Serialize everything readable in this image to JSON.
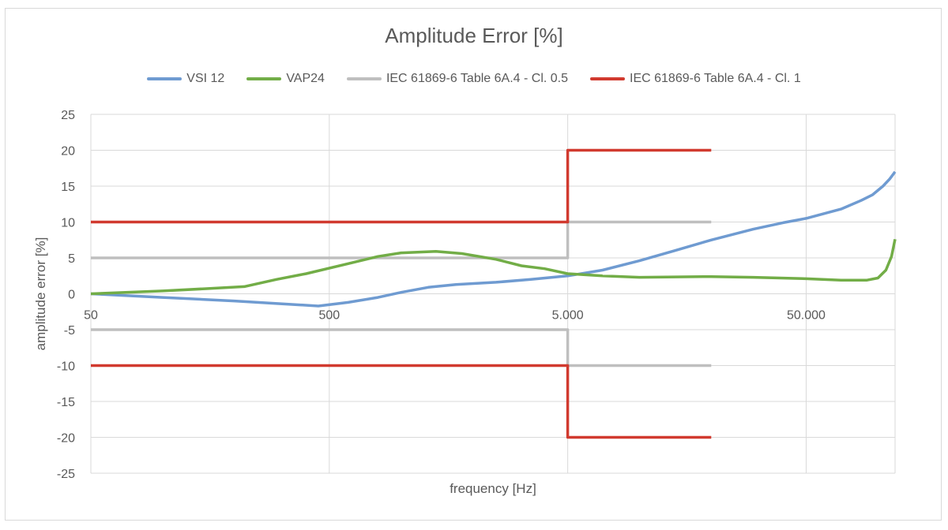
{
  "chart_data": {
    "type": "line",
    "title": "Amplitude Error [%]",
    "xlabel": "frequency [Hz]",
    "ylabel": "amplitude error [%]",
    "x_scale": "log",
    "xlim": [
      50,
      118000
    ],
    "ylim": [
      -25,
      25
    ],
    "x_ticks": [
      50,
      500,
      5000,
      50000
    ],
    "x_tick_labels": [
      "50",
      "500",
      "5.000",
      "50.000"
    ],
    "y_ticks": [
      25,
      20,
      15,
      10,
      5,
      0,
      -5,
      -10,
      -15,
      -20,
      -25
    ],
    "y_tick_labels": [
      "25",
      "20",
      "15",
      "10",
      "5",
      "0",
      "-5",
      "-10",
      "-15",
      "-20",
      "-25"
    ],
    "grid": true,
    "legend_position": "top",
    "series": [
      {
        "name": "VSI 12",
        "color": "#6f9bd1",
        "points": [
          [
            50,
            0
          ],
          [
            100,
            -0.5
          ],
          [
            200,
            -1.0
          ],
          [
            450,
            -1.7
          ],
          [
            600,
            -1.2
          ],
          [
            800,
            -0.5
          ],
          [
            1000,
            0.2
          ],
          [
            1300,
            0.9
          ],
          [
            1700,
            1.3
          ],
          [
            2500,
            1.6
          ],
          [
            3500,
            2.0
          ],
          [
            5000,
            2.5
          ],
          [
            7000,
            3.3
          ],
          [
            10000,
            4.6
          ],
          [
            14000,
            6.0
          ],
          [
            20000,
            7.5
          ],
          [
            30000,
            9.0
          ],
          [
            40000,
            9.9
          ],
          [
            50000,
            10.5
          ],
          [
            70000,
            11.8
          ],
          [
            85000,
            13.0
          ],
          [
            95000,
            13.8
          ],
          [
            105000,
            15.0
          ],
          [
            112000,
            16.0
          ],
          [
            118000,
            17.0
          ]
        ]
      },
      {
        "name": "VAP24",
        "color": "#72ad47",
        "points": [
          [
            50,
            0
          ],
          [
            100,
            0.4
          ],
          [
            150,
            0.7
          ],
          [
            220,
            1.0
          ],
          [
            300,
            2.0
          ],
          [
            400,
            2.8
          ],
          [
            600,
            4.2
          ],
          [
            800,
            5.2
          ],
          [
            1000,
            5.7
          ],
          [
            1400,
            5.9
          ],
          [
            1800,
            5.6
          ],
          [
            2500,
            4.8
          ],
          [
            3200,
            3.9
          ],
          [
            4000,
            3.5
          ],
          [
            5000,
            2.8
          ],
          [
            7000,
            2.5
          ],
          [
            10000,
            2.3
          ],
          [
            20000,
            2.4
          ],
          [
            30000,
            2.3
          ],
          [
            50000,
            2.1
          ],
          [
            70000,
            1.9
          ],
          [
            90000,
            1.9
          ],
          [
            100000,
            2.2
          ],
          [
            108000,
            3.3
          ],
          [
            114000,
            5.2
          ],
          [
            118000,
            7.6
          ]
        ]
      },
      {
        "name": "IEC 61869-6 Table 6A.4 - Cl. 0.5",
        "color": "#bfbfbf",
        "segments": [
          [
            [
              50,
              5
            ],
            [
              5000,
              5
            ],
            [
              5000,
              10
            ],
            [
              20000,
              10
            ]
          ],
          [
            [
              50,
              -5
            ],
            [
              5000,
              -5
            ],
            [
              5000,
              -10
            ],
            [
              20000,
              -10
            ]
          ]
        ]
      },
      {
        "name": "IEC 61869-6 Table 6A.4 - Cl. 1",
        "color": "#d13a2f",
        "segments": [
          [
            [
              50,
              10
            ],
            [
              5000,
              10
            ],
            [
              5000,
              20
            ],
            [
              20000,
              20
            ]
          ],
          [
            [
              50,
              -10
            ],
            [
              5000,
              -10
            ],
            [
              5000,
              -20
            ],
            [
              20000,
              -20
            ]
          ]
        ]
      }
    ]
  }
}
